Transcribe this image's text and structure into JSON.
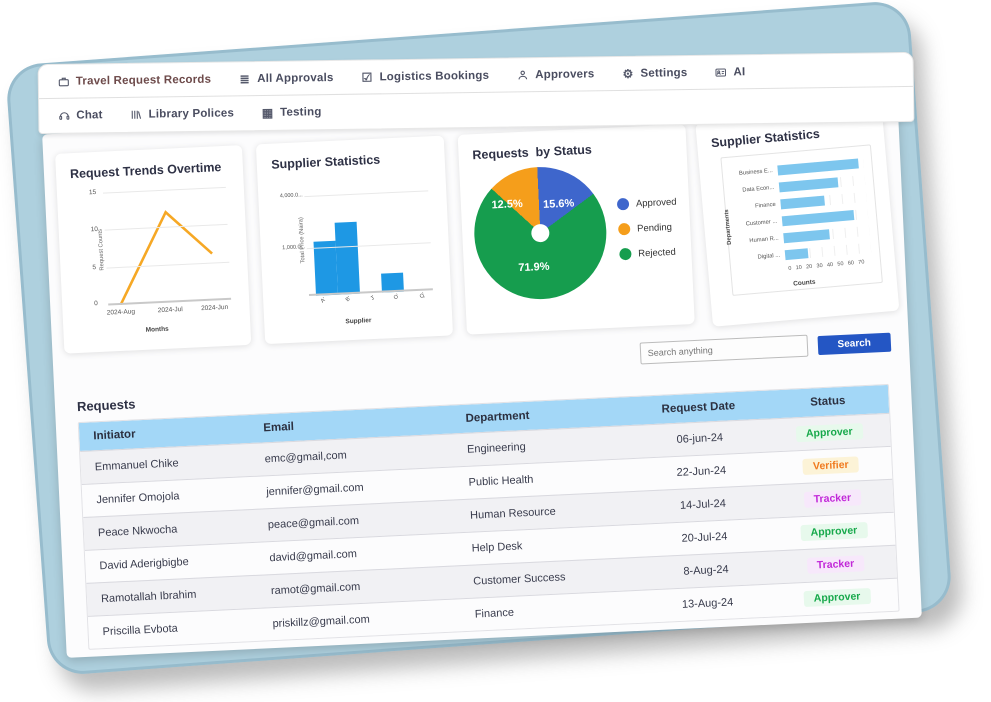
{
  "nav": {
    "row1": [
      {
        "label": "Travel Request Records",
        "icon": "briefcase-icon",
        "accent": true
      },
      {
        "label": "All Approvals",
        "icon": "list-icon",
        "accent": false
      },
      {
        "label": "Logistics Bookings",
        "icon": "checkbox-icon",
        "accent": false
      },
      {
        "label": "Approvers",
        "icon": "person-icon",
        "accent": false
      },
      {
        "label": "Settings",
        "icon": "gear-icon",
        "accent": false
      },
      {
        "label": "AI",
        "icon": "id-card-icon",
        "accent": false
      }
    ],
    "row2": [
      {
        "label": "Chat",
        "icon": "headset-icon",
        "accent": false
      },
      {
        "label": "Library Polices",
        "icon": "books-icon",
        "accent": false
      },
      {
        "label": "Testing",
        "icon": "table-icon",
        "accent": false
      }
    ]
  },
  "search": {
    "placeholder": "Search anything",
    "button_label": "Search"
  },
  "requests_section": {
    "title": "Requests"
  },
  "table": {
    "columns": [
      "Initiator",
      "Email",
      "Department",
      "Request Date",
      "Status"
    ],
    "rows": [
      {
        "initiator": "Emmanuel Chike",
        "email": "emc@gmail,com",
        "department": "Engineering",
        "date": "06-jun-24",
        "status": "Approver",
        "status_type": "approver"
      },
      {
        "initiator": "Jennifer Omojola",
        "email": "jennifer@gmail.com",
        "department": "Public Health",
        "date": "22-Jun-24",
        "status": "Verifier",
        "status_type": "verifier"
      },
      {
        "initiator": "Peace Nkwocha",
        "email": "peace@gmail.com",
        "department": "Human Resource",
        "date": "14-Jul-24",
        "status": "Tracker",
        "status_type": "tracker"
      },
      {
        "initiator": "David Aderigbigbe",
        "email": "david@gmail.com",
        "department": "Help Desk",
        "date": "20-Jul-24",
        "status": "Approver",
        "status_type": "approver"
      },
      {
        "initiator": "Ramotallah Ibrahim",
        "email": "ramot@gmail.com",
        "department": "Customer Success",
        "date": "8-Aug-24",
        "status": "Tracker",
        "status_type": "tracker"
      },
      {
        "initiator": "Priscilla Evbota",
        "email": "priskillz@gmail.com",
        "department": "Finance",
        "date": "13-Aug-24",
        "status": "Approver",
        "status_type": "approver"
      }
    ]
  },
  "statuses": {
    "approver": {
      "text": "#17a94b",
      "bg": "#e7f9ec"
    },
    "verifier": {
      "text": "#f07a1f",
      "bg": "#fcf3d7"
    },
    "tracker": {
      "text": "#c127d8",
      "bg": "#f7e8fb"
    }
  },
  "colors": {
    "backdrop_blue": "#aed0de",
    "table_header_blue": "#a3d7f7",
    "search_button_blue": "#2456c4"
  },
  "chart_data": [
    {
      "type": "line",
      "title": "Request Trends Overtime",
      "x": [
        "2024-Aug",
        "2024-Jul",
        "2024-Jun"
      ],
      "values": [
        0,
        12.5,
        6.5
      ],
      "xlabel": "Months",
      "ylabel": "Request Counts",
      "yticks": [
        0,
        5,
        10,
        15
      ],
      "ylim": [
        0,
        15
      ],
      "line_color": "#f6a825"
    },
    {
      "type": "bar",
      "title": "Supplier Statistics",
      "categories": [
        "A'",
        "B'",
        "J'",
        "O'",
        "Q'"
      ],
      "values": [
        1150,
        1550,
        0,
        400,
        0
      ],
      "ymax": 2400,
      "ytick_labels": [
        "1,000.0...",
        "4,000.0..."
      ],
      "xlabel": "Supplier",
      "ylabel": "Total Price (Naira)",
      "bar_color": "#1e98e4"
    },
    {
      "type": "pie",
      "title": "Requests  by Status",
      "slices": [
        {
          "label": "Approved",
          "value": 15.6,
          "pct_label": "15.6%",
          "color": "#3e66cc"
        },
        {
          "label": "Pending",
          "value": 12.5,
          "pct_label": "12.5%",
          "color": "#f59e1b"
        },
        {
          "label": "Rejected",
          "value": 71.9,
          "pct_label": "71.9%",
          "color": "#169d4e"
        }
      ],
      "draw_order": [
        0,
        2,
        1
      ],
      "legend_position": "right"
    },
    {
      "type": "hbar",
      "title": "Supplier Statistics",
      "categories": [
        "Business E...",
        "Data Econ...",
        "Finance",
        "Customer ...",
        "Human R...",
        "Digital ..."
      ],
      "values": [
        66,
        48,
        36,
        58,
        37,
        19
      ],
      "xticks": [
        0,
        10,
        20,
        30,
        40,
        50,
        60,
        70
      ],
      "xlim": [
        0,
        70
      ],
      "xlabel": "Counts",
      "ylabel": "Departments",
      "bar_color": "#7dc6ee"
    }
  ]
}
